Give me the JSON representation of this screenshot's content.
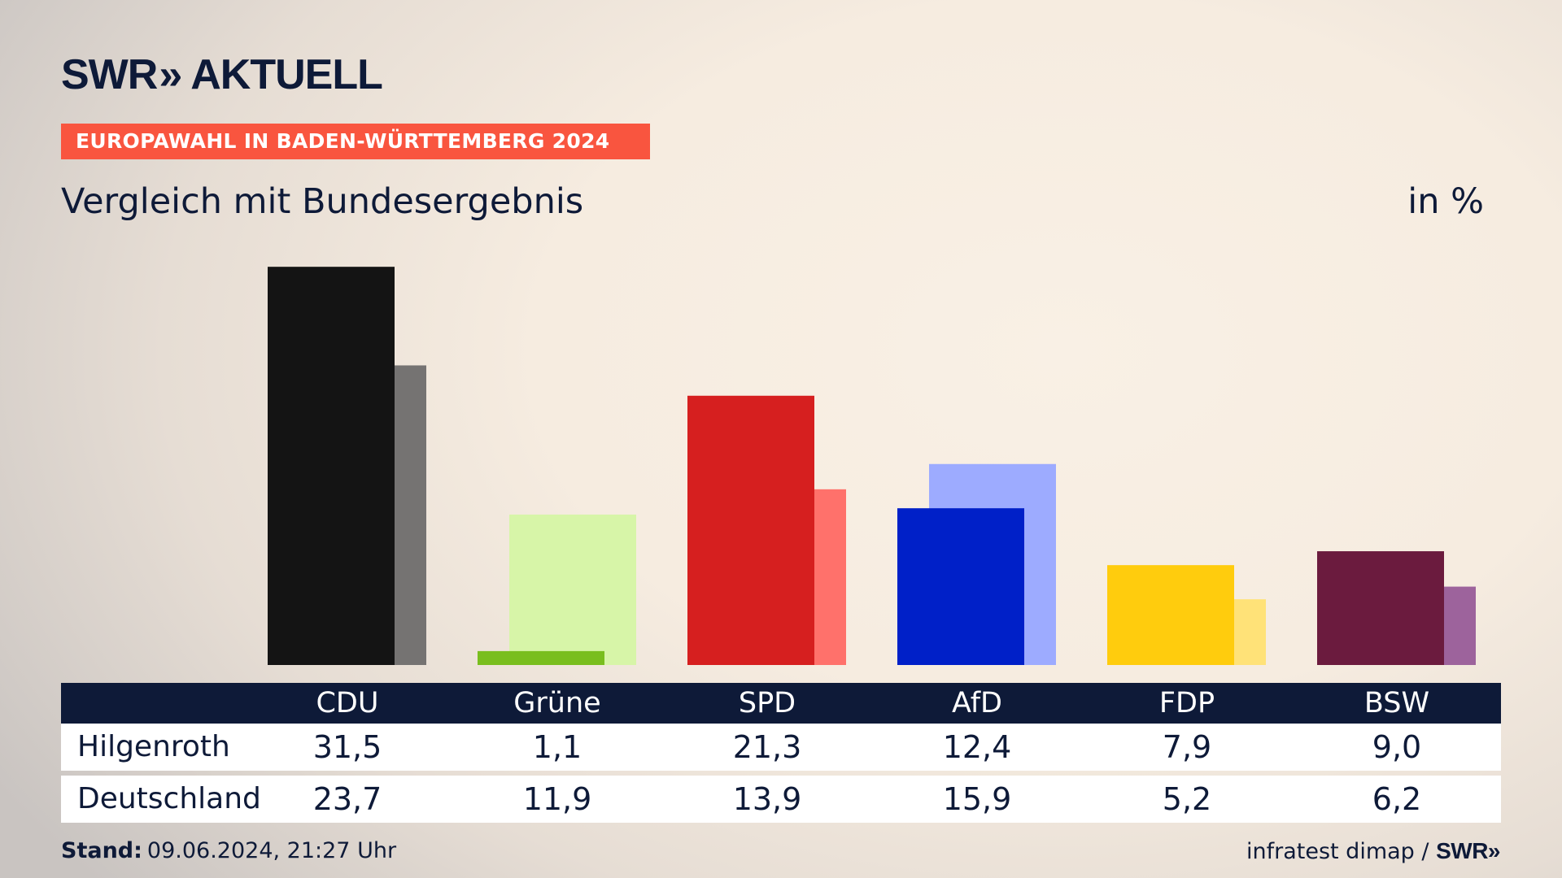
{
  "header": {
    "logo_text": "SWR",
    "logo_chevrons": "»",
    "logo_suffix": "AKTUELL",
    "banner": "EUROPAWAHL IN BADEN-WÜRTTEMBERG 2024",
    "title": "Vergleich mit Bundesergebnis",
    "unit": "in %"
  },
  "chart_data": {
    "type": "bar",
    "categories": [
      "CDU",
      "Grüne",
      "SPD",
      "AfD",
      "FDP",
      "BSW"
    ],
    "series": [
      {
        "name": "Hilgenroth",
        "values": [
          31.5,
          1.1,
          21.3,
          12.4,
          7.9,
          9.0
        ],
        "colors": [
          "#141414",
          "#79be1e",
          "#d61f1f",
          "#0020c8",
          "#ffcc0d",
          "#6b1b3e"
        ]
      },
      {
        "name": "Deutschland",
        "values": [
          23.7,
          11.9,
          13.9,
          15.9,
          5.2,
          6.2
        ],
        "colors": [
          "#757372",
          "#d7f5a8",
          "#ff716b",
          "#9dabff",
          "#ffe278",
          "#9d639c"
        ]
      }
    ]
  },
  "table": {
    "headers": [
      "CDU",
      "Grüne",
      "SPD",
      "AfD",
      "FDP",
      "BSW"
    ],
    "rows": [
      {
        "label": "Hilgenroth",
        "values": [
          "31,5",
          "1,1",
          "21,3",
          "12,4",
          "7,9",
          "9,0"
        ]
      },
      {
        "label": "Deutschland",
        "values": [
          "23,7",
          "11,9",
          "13,9",
          "15,9",
          "5,2",
          "6,2"
        ]
      }
    ]
  },
  "footer": {
    "stand_label": "Stand:",
    "stand_value": "09.06.2024, 21:27 Uhr",
    "source": "infratest dimap /",
    "source_logo": "SWR»"
  }
}
